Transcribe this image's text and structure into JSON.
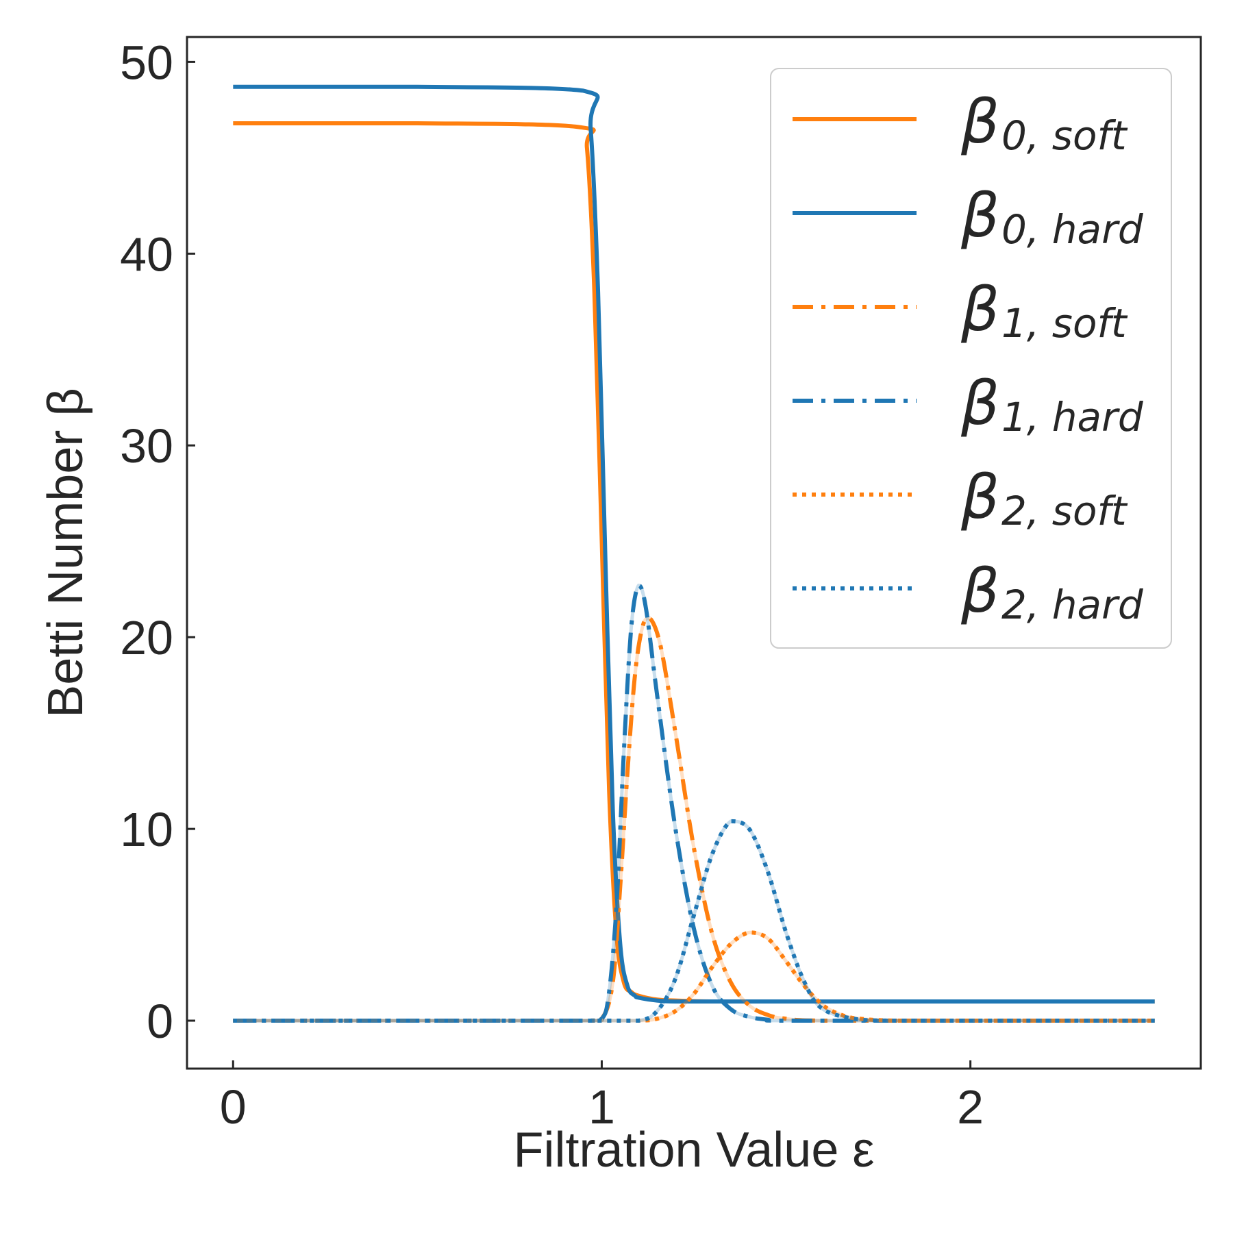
{
  "chart_data": {
    "type": "line",
    "xlabel": "Filtration Value ε",
    "ylabel": "Betti Number β",
    "xlim": [
      -0.125,
      2.625
    ],
    "ylim": [
      -2.5,
      51.3
    ],
    "xticks": [
      0,
      1,
      2
    ],
    "yticks": [
      0,
      10,
      20,
      30,
      40,
      50
    ],
    "xtick_labels": [
      "0",
      "1",
      "2"
    ],
    "ytick_labels": [
      "0",
      "10",
      "20",
      "30",
      "40",
      "50"
    ],
    "grid": false,
    "legend_position": "top-right",
    "series": [
      {
        "name": "β0,soft",
        "base": "β",
        "sub": "0, soft",
        "color": "#ff7f0e",
        "style": "solid",
        "x": [
          0,
          0.5,
          0.94,
          0.96,
          0.98,
          1.0,
          1.02,
          1.04,
          1.06,
          1.08,
          1.1,
          1.15,
          1.2,
          1.3,
          1.5,
          1.8,
          2.1,
          2.5
        ],
        "y": [
          46.8,
          46.8,
          46.6,
          45.5,
          38,
          25,
          12,
          4.5,
          2,
          1.5,
          1.3,
          1.1,
          1.05,
          1.0,
          1.0,
          1.0,
          1.0,
          1.0
        ]
      },
      {
        "name": "β0,hard",
        "base": "β",
        "sub": "0, hard",
        "color": "#1f77b4",
        "style": "solid",
        "x": [
          0,
          0.5,
          0.95,
          0.97,
          0.99,
          1.01,
          1.03,
          1.05,
          1.07,
          1.09,
          1.1,
          1.15,
          1.2,
          1.3,
          1.5,
          1.8,
          2.1,
          2.5
        ],
        "y": [
          48.7,
          48.7,
          48.5,
          46.5,
          38,
          24,
          11,
          4,
          1.8,
          1.3,
          1.2,
          1.05,
          1.0,
          1.0,
          1.0,
          1.0,
          1.0,
          1.0
        ]
      },
      {
        "name": "β1,soft",
        "base": "β",
        "sub": "1, soft",
        "color": "#ff7f0e",
        "style": "dashdot",
        "x": [
          0,
          0.5,
          0.95,
          1.0,
          1.03,
          1.05,
          1.07,
          1.09,
          1.11,
          1.13,
          1.16,
          1.2,
          1.25,
          1.3,
          1.35,
          1.4,
          1.45,
          1.5,
          1.6,
          2.0,
          2.5
        ],
        "y": [
          0,
          0,
          0,
          0.1,
          2,
          7,
          13,
          18,
          20.5,
          21,
          19.5,
          15,
          9,
          4.5,
          2,
          0.8,
          0.3,
          0.1,
          0,
          0,
          0
        ]
      },
      {
        "name": "β1,hard",
        "base": "β",
        "sub": "1, hard",
        "color": "#1f77b4",
        "style": "dashdot",
        "x": [
          0,
          0.5,
          0.95,
          1.0,
          1.02,
          1.04,
          1.06,
          1.08,
          1.1,
          1.12,
          1.15,
          1.2,
          1.25,
          1.3,
          1.35,
          1.4,
          1.45,
          1.5,
          2.0,
          2.5
        ],
        "y": [
          0,
          0,
          0,
          0.1,
          1.5,
          6,
          14,
          20.5,
          22.7,
          21.5,
          17,
          10,
          4.8,
          1.8,
          0.6,
          0.2,
          0.05,
          0,
          0,
          0
        ]
      },
      {
        "name": "β2,soft",
        "base": "β",
        "sub": "2, soft",
        "color": "#ff7f0e",
        "style": "dotted",
        "x": [
          0,
          0.5,
          1.0,
          1.1,
          1.15,
          1.2,
          1.25,
          1.3,
          1.35,
          1.4,
          1.45,
          1.5,
          1.55,
          1.6,
          1.65,
          1.7,
          1.8,
          2.0,
          2.5
        ],
        "y": [
          0,
          0,
          0,
          0,
          0.1,
          0.5,
          1.4,
          2.8,
          4.0,
          4.6,
          4.3,
          3.1,
          1.8,
          0.8,
          0.3,
          0.1,
          0,
          0,
          0
        ]
      },
      {
        "name": "β2,hard",
        "base": "β",
        "sub": "2, hard",
        "color": "#1f77b4",
        "style": "dotted",
        "x": [
          0,
          0.5,
          1.0,
          1.1,
          1.15,
          1.2,
          1.25,
          1.3,
          1.35,
          1.4,
          1.45,
          1.5,
          1.55,
          1.6,
          1.7,
          1.8,
          2.0,
          2.5
        ],
        "y": [
          0,
          0,
          0,
          0,
          0.5,
          2.2,
          5.5,
          8.7,
          10.4,
          10.0,
          7.8,
          4.6,
          2.0,
          0.6,
          0.05,
          0,
          0,
          0
        ]
      }
    ]
  }
}
